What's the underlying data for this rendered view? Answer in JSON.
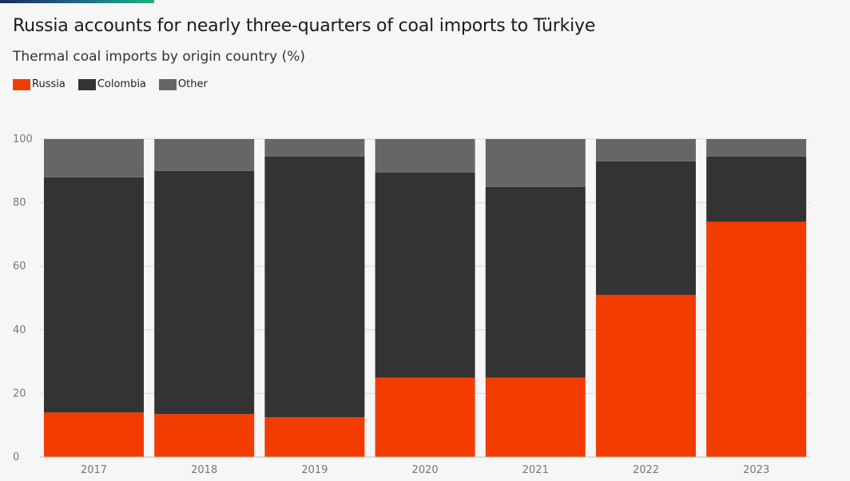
{
  "header": {
    "title": "Russia accounts for nearly three-quarters of coal imports to Türkiye",
    "subtitle": "Thermal coal imports by origin country (%)"
  },
  "chart_data": {
    "type": "bar",
    "stacked": true,
    "categories": [
      "2017",
      "2018",
      "2019",
      "2020",
      "2021",
      "2022",
      "2023"
    ],
    "series": [
      {
        "name": "Russia",
        "color": "#f23c00",
        "values": [
          14,
          13.5,
          12.5,
          25,
          25,
          51,
          74
        ]
      },
      {
        "name": "Colombia",
        "color": "#333333",
        "values": [
          74,
          76.5,
          82,
          64.5,
          60,
          42,
          20.5
        ]
      },
      {
        "name": "Other",
        "color": "#666666",
        "values": [
          12,
          10,
          5.5,
          10.5,
          15,
          7,
          5.5
        ]
      }
    ],
    "ylim": [
      0,
      100
    ],
    "yticks": [
      0,
      20,
      40,
      60,
      80,
      100
    ],
    "grid": true,
    "legend": "top-left"
  }
}
